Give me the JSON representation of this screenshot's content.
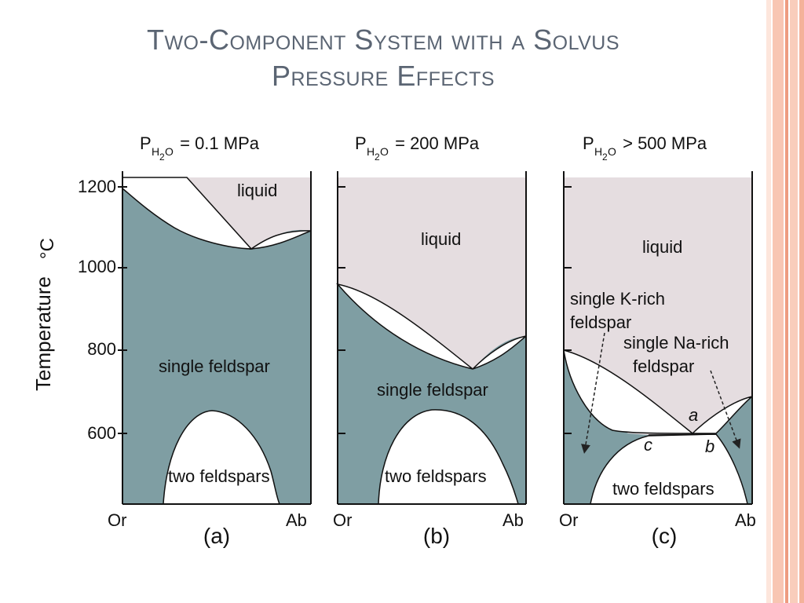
{
  "slide": {
    "title_line1": "Two-Component System with a Solvus",
    "title_line2": "Pressure Effects"
  },
  "colors": {
    "solid": "#7f9ea3",
    "liquid": "#e5dde0",
    "field_white": "#ffffff",
    "title": "#5b6573",
    "stripe_light": "#fbd9cc",
    "stripe_mid": "#f5b59d",
    "stripe_dark": "#ef9a7e"
  },
  "y_axis": {
    "label": "Temperature",
    "unit": "°C",
    "ticks": [
      "1200",
      "1000",
      "800",
      "600"
    ]
  },
  "panels": [
    {
      "id": "a",
      "pressure_prefix": "P",
      "pressure_sub": "H",
      "pressure_sub2": "2",
      "pressure_sub3": "O",
      "pressure_value": " = 0.1 MPa",
      "label_liquid": "liquid",
      "label_single": "single feldspar",
      "label_two": "two feldspars",
      "x_left": "Or",
      "x_right": "Ab",
      "caption": "(a)"
    },
    {
      "id": "b",
      "pressure_prefix": "P",
      "pressure_sub": "H",
      "pressure_sub2": "2",
      "pressure_sub3": "O",
      "pressure_value": " = 200 MPa",
      "label_liquid": "liquid",
      "label_single": "single feldspar",
      "label_two": "two feldspars",
      "x_left": "Or",
      "x_right": "Ab",
      "caption": "(b)"
    },
    {
      "id": "c",
      "pressure_prefix": "P",
      "pressure_sub": "H",
      "pressure_sub2": "2",
      "pressure_sub3": "O",
      "pressure_value": " > 500 MPa",
      "label_liquid": "liquid",
      "label_k1": "single K-rich",
      "label_k2": "feldspar",
      "label_na1": "single Na-rich",
      "label_na2": "feldspar",
      "point_a": "a",
      "point_b": "b",
      "point_c": "c",
      "label_two": "two feldspars",
      "x_left": "Or",
      "x_right": "Ab",
      "caption": "(c)"
    }
  ]
}
